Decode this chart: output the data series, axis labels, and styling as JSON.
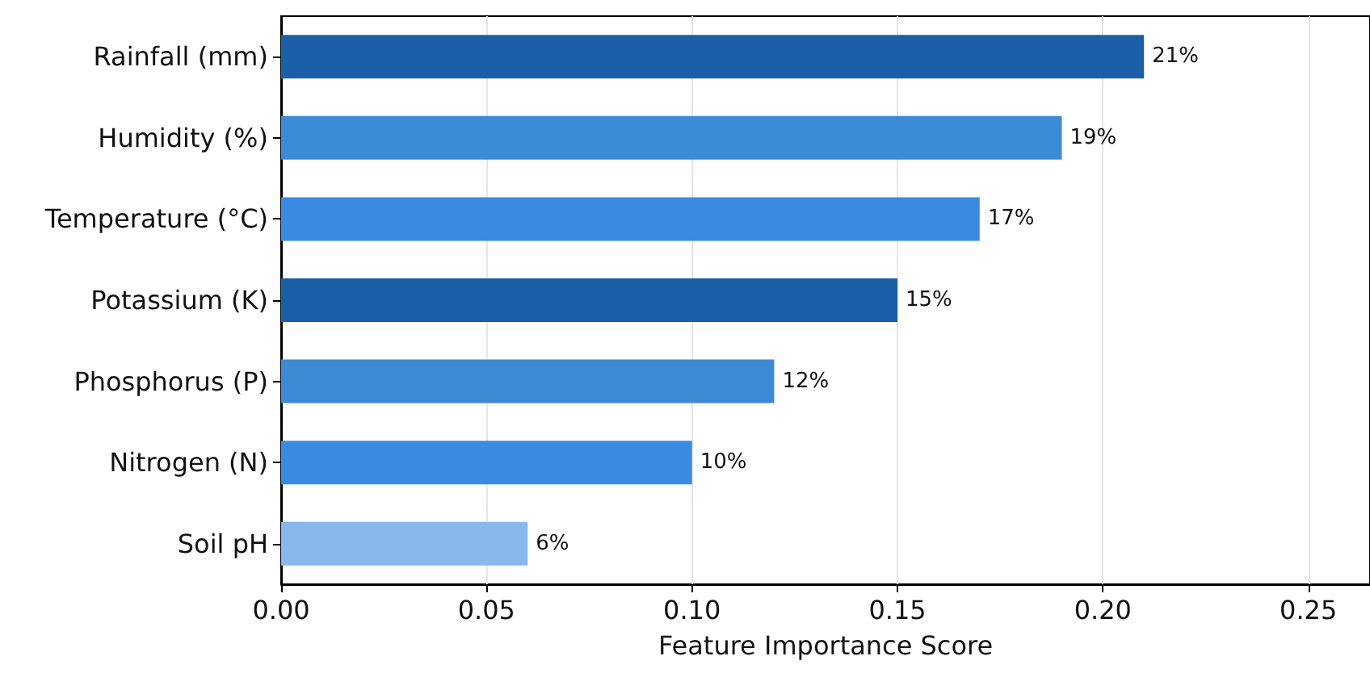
{
  "chart_data": {
    "type": "bar",
    "orientation": "horizontal",
    "xlabel": "Feature Importance Score",
    "categories": [
      "Rainfall (mm)",
      "Humidity (%)",
      "Temperature (°C)",
      "Potassium (K)",
      "Phosphorus (P)",
      "Nitrogen (N)",
      "Soil pH"
    ],
    "values": [
      0.21,
      0.19,
      0.17,
      0.15,
      0.12,
      0.1,
      0.06
    ],
    "colors": [
      "#1b5fa8",
      "#3b8bd6",
      "#3a8ae2",
      "#1a5ea5",
      "#3c8ad4",
      "#3a8be2",
      "#88b7eb"
    ],
    "value_labels": [
      "21%",
      "19%",
      "17%",
      "15%",
      "12%",
      "10%",
      "6%"
    ],
    "xlim": [
      0,
      0.265
    ],
    "xticks": [
      {
        "value": 0,
        "label": "0.00"
      },
      {
        "value": 0.05,
        "label": "0.05"
      },
      {
        "value": 0.1,
        "label": "0.10"
      },
      {
        "value": 0.15,
        "label": "0.15"
      },
      {
        "value": 0.2,
        "label": "0.20"
      },
      {
        "value": 0.25,
        "label": "0.25"
      }
    ],
    "grid": "x"
  }
}
